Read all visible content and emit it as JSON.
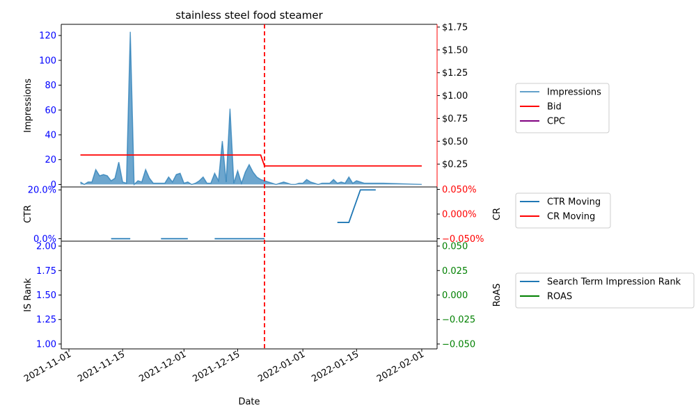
{
  "chart_data": {
    "title": "stainless steel food steamer",
    "xlabel": "Date",
    "x_ticks": [
      "2021-11-01",
      "2021-11-15",
      "2021-12-01",
      "2021-12-15",
      "2022-01-01",
      "2022-01-15",
      "2022-02-01"
    ],
    "x_range": [
      "2021-10-30",
      "2022-02-05"
    ],
    "marker_date": "2021-12-22",
    "panels": [
      {
        "type": "area+line",
        "ylabel_left": "Impressions",
        "ylabel_right": "",
        "ylim_left": [
          -2,
          129
        ],
        "ylim_right": [
          0,
          1.78
        ],
        "yticks_left": [
          "0",
          "20",
          "40",
          "60",
          "80",
          "100",
          "120"
        ],
        "yticks_right": [
          "$0.25",
          "$0.50",
          "$0.75",
          "$1.00",
          "$1.25",
          "$1.50",
          "$1.75"
        ],
        "left_tick_color": "#0000ff",
        "right_tick_color": "#000000",
        "right_spine_color": "#ff0000",
        "series": [
          {
            "name": "Impressions",
            "axis": "left",
            "color": "#1f77b4",
            "points": [
              [
                "2021-11-04",
                2
              ],
              [
                "2021-11-05",
                0
              ],
              [
                "2021-11-06",
                2
              ],
              [
                "2021-11-07",
                2
              ],
              [
                "2021-11-08",
                12
              ],
              [
                "2021-11-09",
                7
              ],
              [
                "2021-11-10",
                8
              ],
              [
                "2021-11-11",
                7
              ],
              [
                "2021-11-12",
                3
              ],
              [
                "2021-11-13",
                5
              ],
              [
                "2021-11-14",
                18
              ],
              [
                "2021-11-15",
                2
              ],
              [
                "2021-11-16",
                1
              ],
              [
                "2021-11-17",
                123
              ],
              [
                "2021-11-18",
                0
              ],
              [
                "2021-11-19",
                3
              ],
              [
                "2021-11-20",
                2
              ],
              [
                "2021-11-21",
                12
              ],
              [
                "2021-11-22",
                5
              ],
              [
                "2021-11-23",
                1
              ],
              [
                "2021-11-24",
                1
              ],
              [
                "2021-11-25",
                1
              ],
              [
                "2021-11-26",
                1
              ],
              [
                "2021-11-27",
                6
              ],
              [
                "2021-11-28",
                2
              ],
              [
                "2021-11-29",
                8
              ],
              [
                "2021-11-30",
                9
              ],
              [
                "2021-12-01",
                1
              ],
              [
                "2021-12-02",
                2
              ],
              [
                "2021-12-03",
                0
              ],
              [
                "2021-12-04",
                1
              ],
              [
                "2021-12-05",
                3
              ],
              [
                "2021-12-06",
                6
              ],
              [
                "2021-12-07",
                1
              ],
              [
                "2021-12-08",
                1
              ],
              [
                "2021-12-09",
                9
              ],
              [
                "2021-12-10",
                3
              ],
              [
                "2021-12-11",
                35
              ],
              [
                "2021-12-12",
                2
              ],
              [
                "2021-12-13",
                61
              ],
              [
                "2021-12-14",
                1
              ],
              [
                "2021-12-15",
                11
              ],
              [
                "2021-12-16",
                1
              ],
              [
                "2021-12-17",
                10
              ],
              [
                "2021-12-18",
                16
              ],
              [
                "2021-12-19",
                10
              ],
              [
                "2021-12-20",
                6
              ],
              [
                "2021-12-21",
                4
              ],
              [
                "2021-12-22",
                3
              ],
              [
                "2021-12-23",
                2
              ],
              [
                "2021-12-24",
                1
              ],
              [
                "2021-12-25",
                0
              ],
              [
                "2021-12-26",
                1
              ],
              [
                "2021-12-27",
                2
              ],
              [
                "2021-12-28",
                1
              ],
              [
                "2021-12-29",
                0
              ],
              [
                "2021-12-30",
                0
              ],
              [
                "2021-12-31",
                1
              ],
              [
                "2022-01-01",
                1
              ],
              [
                "2022-01-02",
                4
              ],
              [
                "2022-01-03",
                2
              ],
              [
                "2022-01-04",
                1
              ],
              [
                "2022-01-05",
                0
              ],
              [
                "2022-01-06",
                1
              ],
              [
                "2022-01-07",
                1
              ],
              [
                "2022-01-08",
                1
              ],
              [
                "2022-01-09",
                4
              ],
              [
                "2022-01-10",
                1
              ],
              [
                "2022-01-11",
                2
              ],
              [
                "2022-01-12",
                1
              ],
              [
                "2022-01-13",
                6
              ],
              [
                "2022-01-14",
                1
              ],
              [
                "2022-01-15",
                3
              ],
              [
                "2022-01-16",
                2
              ],
              [
                "2022-01-17",
                1
              ],
              [
                "2022-01-18",
                1
              ],
              [
                "2022-01-19",
                1
              ],
              [
                "2022-01-20",
                1
              ],
              [
                "2022-01-21",
                1
              ],
              [
                "2022-01-22",
                1
              ],
              [
                "2022-02-01",
                0
              ]
            ]
          },
          {
            "name": "Bid",
            "axis": "right",
            "color": "#ff0000",
            "points": [
              [
                "2021-11-04",
                0.35
              ],
              [
                "2021-12-21",
                0.35
              ],
              [
                "2021-12-22",
                0.23
              ],
              [
                "2022-02-01",
                0.23
              ]
            ]
          },
          {
            "name": "CPC",
            "axis": "right",
            "color": "#800080",
            "points": []
          }
        ],
        "legend": [
          "Impressions",
          "Bid",
          "CPC"
        ]
      },
      {
        "type": "line",
        "ylabel_left": "CTR",
        "ylabel_right": "CR",
        "ylim_left": [
          -0.01,
          0.212
        ],
        "ylim_right": [
          -0.055,
          0.055
        ],
        "yticks_left": [
          "0.0%",
          "20.0%"
        ],
        "yticks_right": [
          "−0.050%",
          "0.000%",
          "0.050%"
        ],
        "left_tick_color": "#0000ff",
        "right_tick_color": "#ff0000",
        "series": [
          {
            "name": "CTR Moving",
            "axis": "left",
            "color": "#1f77b4",
            "segments": [
              [
                [
                  "2021-11-12",
                  0
                ],
                [
                  "2021-11-17",
                  0
                ]
              ],
              [
                [
                  "2021-11-25",
                  0
                ],
                [
                  "2021-12-02",
                  0
                ]
              ],
              [
                [
                  "2021-12-09",
                  0
                ],
                [
                  "2021-12-22",
                  0
                ]
              ],
              [
                [
                  "2022-01-10",
                  0.0667
                ],
                [
                  "2022-01-13",
                  0.0667
                ],
                [
                  "2022-01-16",
                  0.2
                ],
                [
                  "2022-01-20",
                  0.2
                ]
              ]
            ]
          },
          {
            "name": "CR Moving",
            "axis": "right",
            "color": "#ff0000",
            "segments": []
          }
        ],
        "legend": [
          "CTR Moving",
          "CR Moving"
        ]
      },
      {
        "type": "line",
        "ylabel_left": "IS Rank",
        "ylabel_right": "RoAS",
        "ylim_left": [
          0.95,
          2.05
        ],
        "ylim_right": [
          -0.055,
          0.055
        ],
        "yticks_left": [
          "1.00",
          "1.25",
          "1.50",
          "1.75",
          "2.00"
        ],
        "yticks_right": [
          "−0.050",
          "−0.025",
          "0.000",
          "0.025",
          "0.050"
        ],
        "left_tick_color": "#0000ff",
        "right_tick_color": "#008000",
        "series": [
          {
            "name": "Search Term Impression Rank",
            "axis": "left",
            "color": "#1f77b4",
            "segments": []
          },
          {
            "name": "ROAS",
            "axis": "right",
            "color": "#008000",
            "segments": []
          }
        ],
        "legend": [
          "Search Term Impression Rank",
          "ROAS"
        ]
      }
    ]
  }
}
